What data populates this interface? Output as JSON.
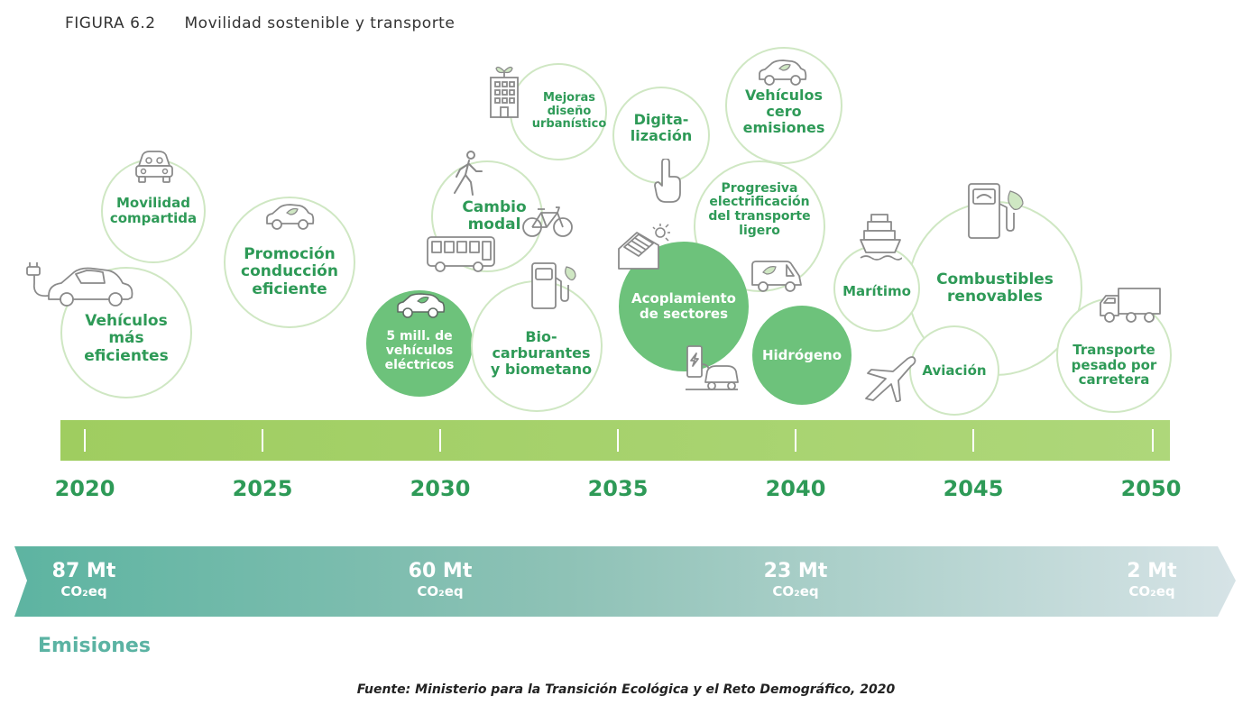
{
  "figure": {
    "number": "FIGURA 6.2",
    "title": "Movilidad sostenible y transporte"
  },
  "bubbles": [
    {
      "id": "vehiculos-mas-eficientes",
      "label": "Vehículos\nmás\neficientes",
      "filled": false
    },
    {
      "id": "movilidad-compartida",
      "label": "Movilidad\ncompartida",
      "filled": false
    },
    {
      "id": "promocion-conduccion",
      "label": "Promoción\nconducción\neficiente",
      "filled": false
    },
    {
      "id": "cinco-mill",
      "label": "5 mill. de\nvehículos\neléctricos",
      "filled": true
    },
    {
      "id": "cambio-modal",
      "label": "Cambio\nmodal",
      "filled": false
    },
    {
      "id": "mejoras-diseno",
      "label": "Mejoras\ndiseño\nurbanístico",
      "filled": false
    },
    {
      "id": "biocarburantes",
      "label": "Bio-\ncarburantes\ny biometano",
      "filled": false
    },
    {
      "id": "digitalizacion",
      "label": "Digita-\nlización",
      "filled": false
    },
    {
      "id": "acoplamiento",
      "label": "Acoplamiento\nde sectores",
      "filled": true
    },
    {
      "id": "vehiculos-cero",
      "label": "Vehículos\ncero\nemisiones",
      "filled": false
    },
    {
      "id": "electrificacion",
      "label": "Progresiva\nelectrificación\ndel transporte\nligero",
      "filled": false
    },
    {
      "id": "hidrogeno",
      "label": "Hidrógeno",
      "filled": true
    },
    {
      "id": "maritimo",
      "label": "Marítimo",
      "filled": false
    },
    {
      "id": "combustibles",
      "label": "Combustibles\nrenovables",
      "filled": false
    },
    {
      "id": "aviacion",
      "label": "Aviación",
      "filled": false
    },
    {
      "id": "transporte-pesado",
      "label": "Transporte\npesado por\ncarretera",
      "filled": false
    }
  ],
  "timeline": {
    "years": [
      "2020",
      "2025",
      "2030",
      "2035",
      "2040",
      "2045",
      "2050"
    ]
  },
  "emissions": {
    "title": "Emisiones",
    "unit": "CO₂eq",
    "points": [
      {
        "year": "2020",
        "value": "87 Mt"
      },
      {
        "year": "2030",
        "value": "60 Mt"
      },
      {
        "year": "2040",
        "value": "23 Mt"
      },
      {
        "year": "2050",
        "value": "2 Mt"
      }
    ]
  },
  "source": "Fuente: Ministerio para la Transición Ecológica y el Reto Demográfico, 2020",
  "colors": {
    "accent_green": "#2e9a57",
    "bubble_fill": "#6dc27b",
    "bubble_border": "#cfe7c3",
    "timeline_green": "#a6d36c",
    "emissions_teal": "#5bb3a3"
  }
}
